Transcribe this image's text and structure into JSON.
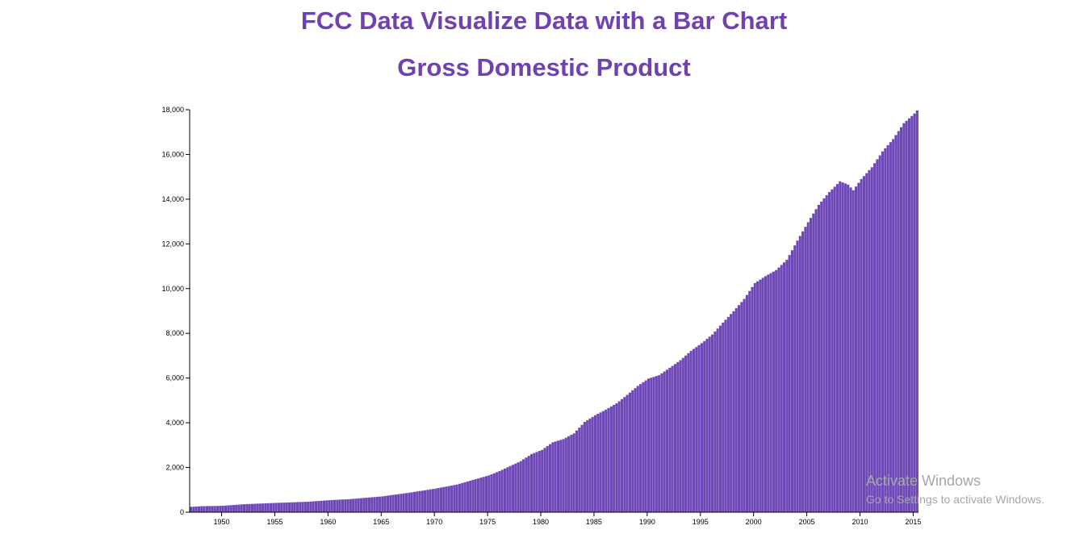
{
  "page": {
    "title": "FCC Data Visualize Data with a Bar Chart",
    "subtitle": "Gross Domestic Product"
  },
  "watermark": {
    "title": "Activate Windows",
    "subtitle": "Go to Settings to activate Windows."
  },
  "colors": {
    "accent": "#6f42b0",
    "bar": "#6f48b8",
    "bar_edge": "#ffffff"
  },
  "chart_data": {
    "type": "bar",
    "title": "Gross Domestic Product",
    "xlabel": "",
    "ylabel": "",
    "xlim": [
      1947,
      2015.5
    ],
    "ylim": [
      0,
      18000
    ],
    "grid": false,
    "x_ticks": [
      "1950",
      "1955",
      "1960",
      "1965",
      "1970",
      "1975",
      "1980",
      "1985",
      "1990",
      "1995",
      "2000",
      "2005",
      "2010",
      "2015"
    ],
    "y_ticks": [
      "0",
      "2,000",
      "4,000",
      "6,000",
      "8,000",
      "10,000",
      "12,000",
      "14,000",
      "16,000",
      "18,000"
    ],
    "series": [
      {
        "interval": "quarterly",
        "x": [
          1947,
          1948,
          1950,
          1952,
          1955,
          1958,
          1960,
          1962,
          1965,
          1968,
          1970,
          1972,
          1975,
          1976,
          1978,
          1979,
          1980,
          1981,
          1982,
          1983,
          1984,
          1985,
          1986,
          1987,
          1988,
          1989,
          1990,
          1991,
          1992,
          1993,
          1994,
          1995,
          1996,
          1997,
          1998,
          1999,
          2000,
          2001,
          2002,
          2003,
          2004,
          2005,
          2006,
          2007,
          2008,
          2008.75,
          2009.25,
          2010,
          2011,
          2012,
          2013,
          2014,
          2015,
          2015.25
        ],
        "values": [
          243,
          270,
          290,
          360,
          420,
          470,
          540,
          590,
          710,
          910,
          1060,
          1240,
          1650,
          1840,
          2290,
          2600,
          2790,
          3130,
          3270,
          3530,
          4040,
          4340,
          4590,
          4870,
          5250,
          5650,
          5980,
          6130,
          6460,
          6800,
          7220,
          7560,
          7950,
          8480,
          8990,
          9540,
          10250,
          10560,
          10830,
          11290,
          12150,
          12970,
          13750,
          14320,
          14800,
          14650,
          14400,
          14900,
          15430,
          16140,
          16690,
          17400,
          17830,
          17970
        ]
      }
    ]
  }
}
